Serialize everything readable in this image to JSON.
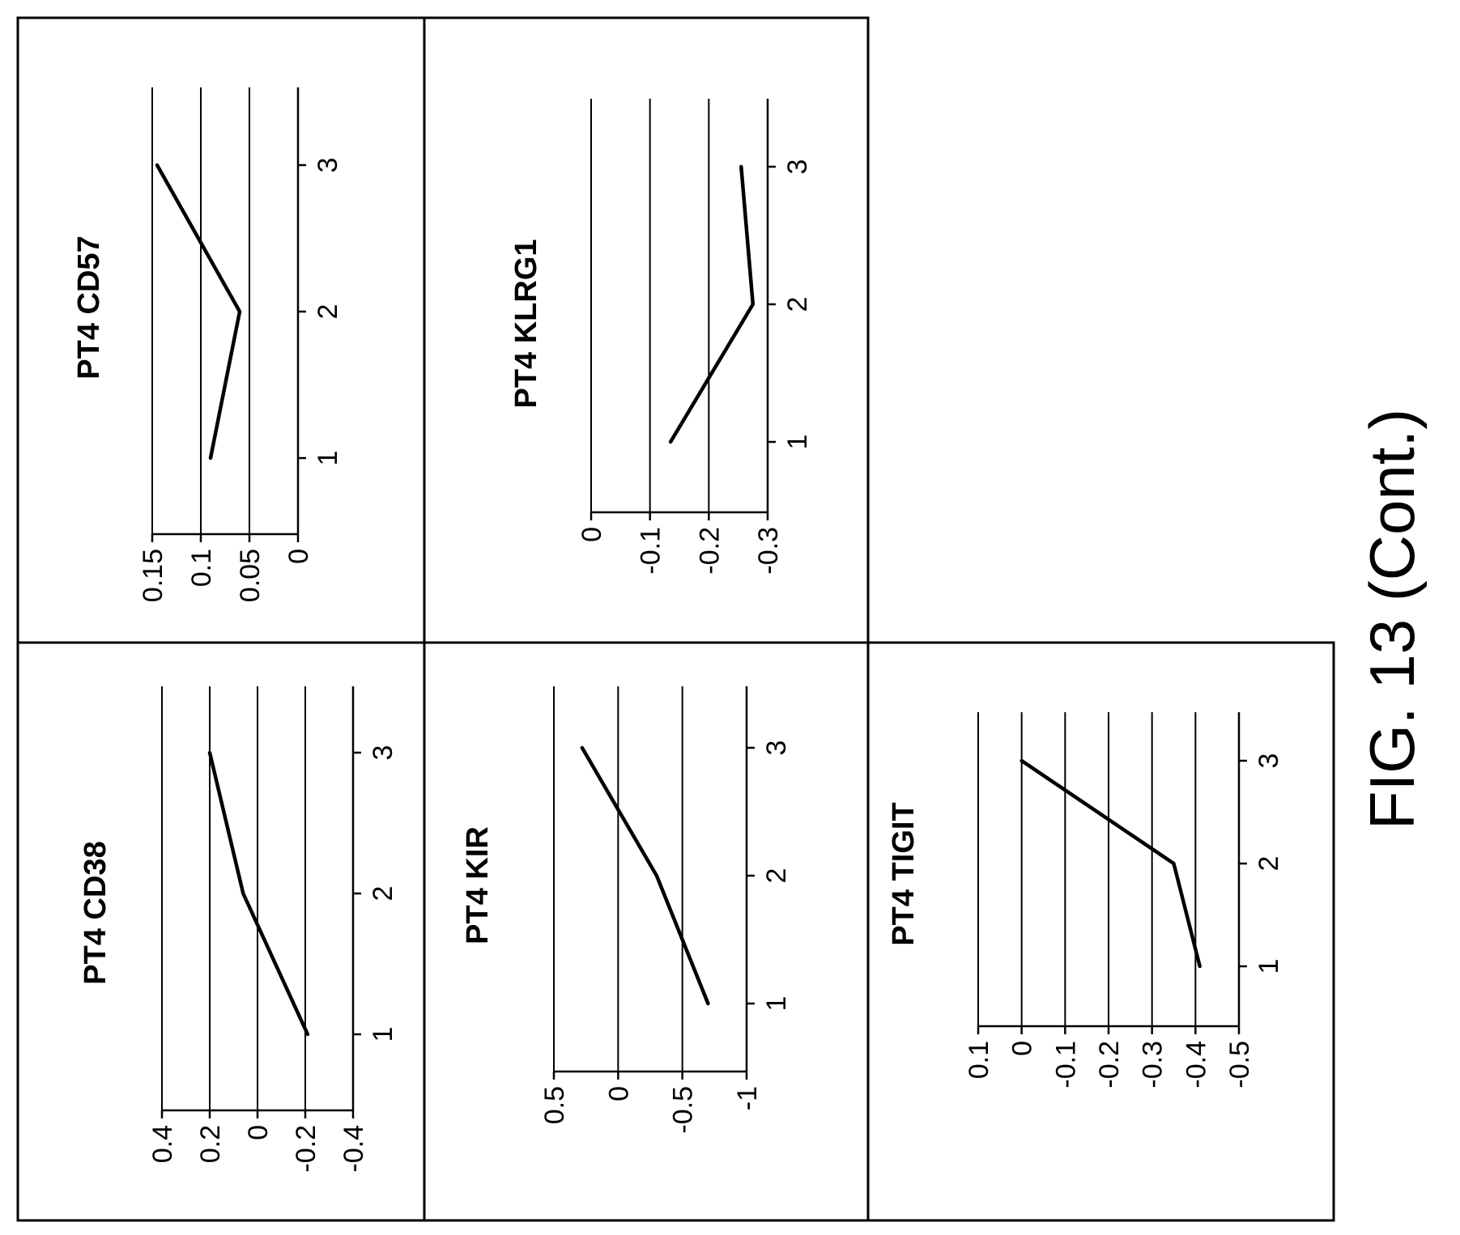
{
  "figure_caption": "FIG. 13 (Cont.)",
  "chart_data": [
    {
      "type": "line",
      "title": "PT4 CD57",
      "x": [
        1,
        2,
        3
      ],
      "series": [
        {
          "values": [
            0.09,
            0.06,
            0.145
          ]
        }
      ],
      "xticks": [
        "1",
        "2",
        "3"
      ],
      "yticks": [
        "0.15",
        "0.1",
        "0.05",
        "0"
      ],
      "xlim": [
        0.5,
        3.5
      ],
      "ylim": [
        0,
        0.15
      ],
      "grid": true
    },
    {
      "type": "line",
      "title": "PT4 KLRG1",
      "x": [
        1,
        2,
        3
      ],
      "series": [
        {
          "values": [
            -0.135,
            -0.275,
            -0.255
          ]
        }
      ],
      "xticks": [
        "1",
        "2",
        "3"
      ],
      "yticks": [
        "0",
        "-0.1",
        "-0.2",
        "-0.3"
      ],
      "xlim": [
        0.5,
        3.5
      ],
      "ylim": [
        -0.3,
        0
      ],
      "grid": true
    },
    {
      "type": "line",
      "title": "PT4 CD38",
      "x": [
        1,
        2,
        3
      ],
      "series": [
        {
          "values": [
            -0.21,
            0.06,
            0.2
          ]
        }
      ],
      "xticks": [
        "1",
        "2",
        "3"
      ],
      "yticks": [
        "0.4",
        "0.2",
        "0",
        "-0.2",
        "-0.4"
      ],
      "xlim": [
        0.5,
        3.5
      ],
      "ylim": [
        -0.4,
        0.4
      ],
      "grid": true
    },
    {
      "type": "line",
      "title": "PT4 KIR",
      "x": [
        1,
        2,
        3
      ],
      "series": [
        {
          "values": [
            -0.7,
            -0.3,
            0.28
          ]
        }
      ],
      "xticks": [
        "1",
        "2",
        "3"
      ],
      "yticks": [
        "0.5",
        "0",
        "-0.5",
        "-1"
      ],
      "xlim": [
        0.5,
        3.5
      ],
      "ylim": [
        -1,
        0.5
      ],
      "grid": true
    },
    {
      "type": "line",
      "title": "PT4 TIGIT",
      "x": [
        1,
        2,
        3
      ],
      "series": [
        {
          "values": [
            -0.41,
            -0.35,
            0.0
          ]
        }
      ],
      "xticks": [
        "1",
        "2",
        "3"
      ],
      "yticks": [
        "0.1",
        "0",
        "-0.1",
        "-0.2",
        "-0.3",
        "-0.4",
        "-0.5"
      ],
      "xlim": [
        0.5,
        3.5
      ],
      "ylim": [
        -0.5,
        0.1
      ],
      "grid": true
    }
  ]
}
